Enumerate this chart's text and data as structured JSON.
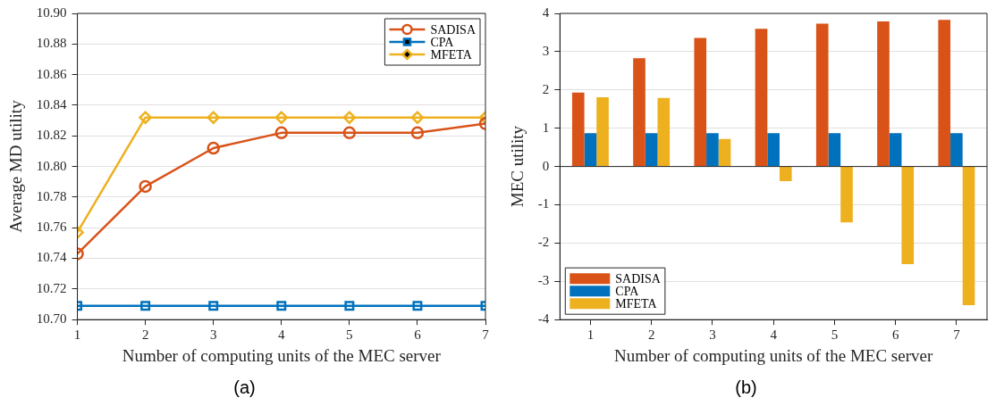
{
  "chart_data": [
    {
      "type": "line",
      "title": "(a)",
      "xlabel": "Number of computing units of the MEC server",
      "ylabel": "Average MD utility",
      "x": [
        1,
        2,
        3,
        4,
        5,
        6,
        7
      ],
      "xlim": [
        1,
        7
      ],
      "xticks": [
        1,
        2,
        3,
        4,
        5,
        6,
        7
      ],
      "ylim": [
        10.7,
        10.9
      ],
      "yticks": [
        {
          "value": 10.7,
          "label": "10.70"
        },
        {
          "value": 10.72,
          "label": "10.72"
        },
        {
          "value": 10.74,
          "label": "10.74"
        },
        {
          "value": 10.76,
          "label": "10.76"
        },
        {
          "value": 10.78,
          "label": "10.78"
        },
        {
          "value": 10.8,
          "label": "10.80"
        },
        {
          "value": 10.82,
          "label": "10.82"
        },
        {
          "value": 10.84,
          "label": "10.84"
        },
        {
          "value": 10.86,
          "label": "10.86"
        },
        {
          "value": 10.88,
          "label": "10.88"
        },
        {
          "value": 10.9,
          "label": "10.90"
        }
      ],
      "grid": "y",
      "legend": "top right",
      "series": [
        {
          "name": "SADISA",
          "color": "#d95319",
          "marker": "circle",
          "values": [
            10.743,
            10.787,
            10.812,
            10.822,
            10.822,
            10.822,
            10.828
          ]
        },
        {
          "name": "CPA",
          "color": "#0072bd",
          "marker": "square",
          "values": [
            10.709,
            10.709,
            10.709,
            10.709,
            10.709,
            10.709,
            10.709
          ]
        },
        {
          "name": "MFETA",
          "color": "#edb120",
          "marker": "diamond",
          "values": [
            10.757,
            10.832,
            10.832,
            10.832,
            10.832,
            10.832,
            10.832
          ]
        }
      ]
    },
    {
      "type": "bar",
      "title": "(b)",
      "xlabel": "Number of computing units of the MEC server",
      "ylabel": "MEC utility",
      "categories": [
        "1",
        "2",
        "3",
        "4",
        "5",
        "6",
        "7"
      ],
      "ylim": [
        -4,
        4
      ],
      "yticks": [
        -4,
        -3,
        -2,
        -1,
        0,
        1,
        2,
        3,
        4
      ],
      "grid": "y",
      "legend": "bottom left",
      "series": [
        {
          "name": "SADISA",
          "color": "#d95319",
          "values": [
            1.93,
            2.83,
            3.36,
            3.6,
            3.73,
            3.79,
            3.83
          ]
        },
        {
          "name": "CPA",
          "color": "#0072bd",
          "values": [
            0.87,
            0.87,
            0.87,
            0.87,
            0.87,
            0.87,
            0.87
          ]
        },
        {
          "name": "MFETA",
          "color": "#edb120",
          "values": [
            1.81,
            1.79,
            0.72,
            -0.38,
            -1.46,
            -2.55,
            -3.62
          ]
        }
      ]
    }
  ]
}
